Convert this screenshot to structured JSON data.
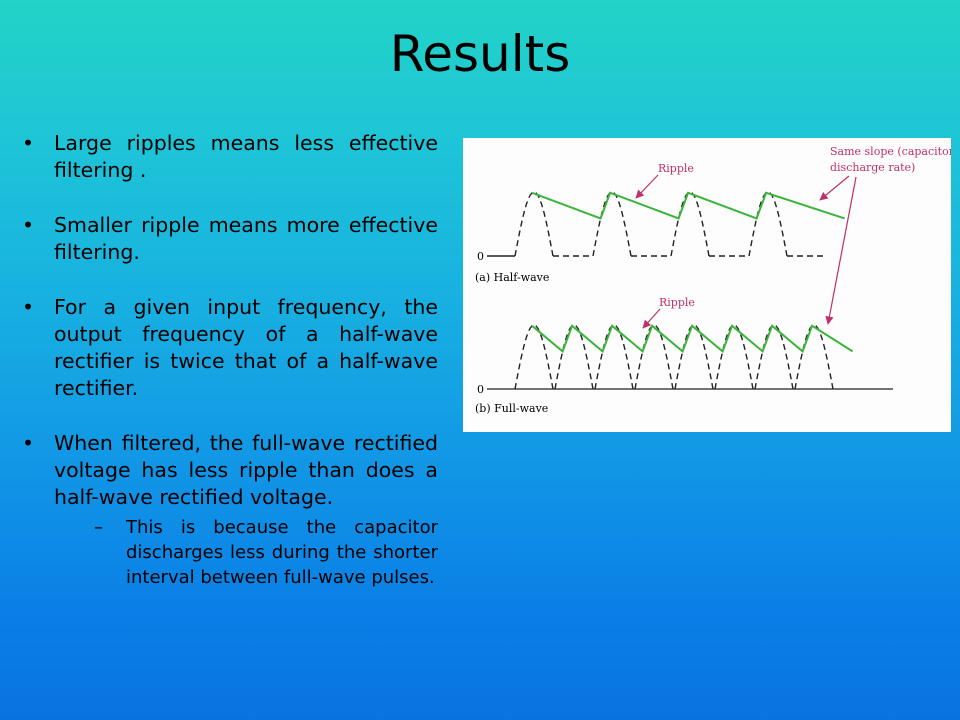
{
  "slide": {
    "title": "Results",
    "bullets": [
      {
        "text": "Large ripples means less effective filtering ."
      },
      {
        "text": "Smaller ripple means more effective filtering."
      },
      {
        "text": "For a given input frequency, the output frequency of a half-wave rectifier is twice that of a half-wave rectifier."
      },
      {
        "text": "When filtered, the full-wave rectified voltage has less ripple than does a half-wave rectified voltage.",
        "sub": "This is because the capacitor discharges less during the shorter interval between full-wave pulses."
      }
    ],
    "bullet_glyph": "•",
    "sub_glyph": "–"
  },
  "figure": {
    "annotation": [
      "Same slope (capacitor",
      "discharge rate)"
    ],
    "ripple_label_top": "Ripple",
    "ripple_label_bottom": "Ripple",
    "zero_top": "0",
    "zero_bottom": "0",
    "caption_top": "(a) Half-wave",
    "caption_bottom": "(b) Full-wave",
    "colors": {
      "filtered": "#3cb43c",
      "arrow": "#c0306a",
      "annotation": "#c0306a",
      "waveform": "#222222"
    }
  }
}
